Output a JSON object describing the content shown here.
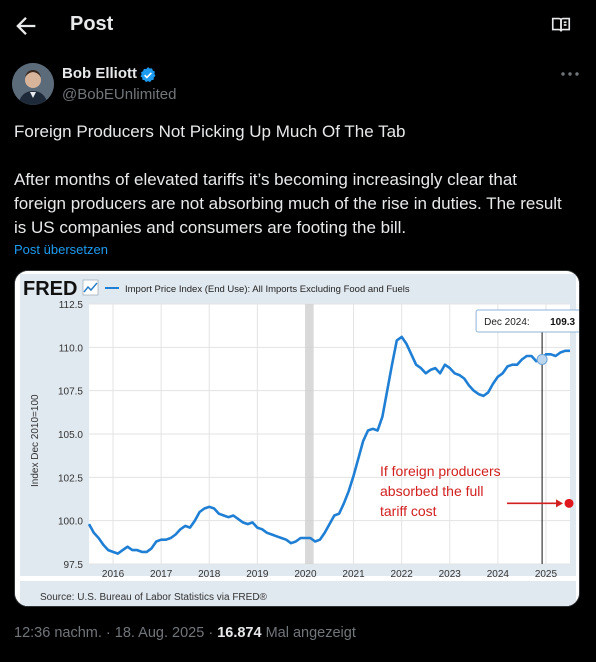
{
  "header": {
    "title": "Post"
  },
  "author": {
    "name": "Bob Elliott",
    "handle": "@BobEUnlimited"
  },
  "post": {
    "headline": "Foreign Producers Not Picking Up Much Of The Tab",
    "body_lines": [
      "After months of elevated tariffs it’s becoming increasingly clear that",
      "foreign producers are not absorbing much of the rise in duties. The result",
      "is US companies and consumers are footing the bill."
    ],
    "translate_label": "Post übersetzen"
  },
  "chart_data": {
    "type": "line",
    "logo": "FRED",
    "series_name": "Import Price Index (End Use): All Imports Excluding Food and Fuels",
    "ylabel": "Index Dec 2010=100",
    "ylim": [
      97.5,
      112.5
    ],
    "yticks": [
      "97.5",
      "100.0",
      "102.5",
      "105.0",
      "107.5",
      "110.0",
      "112.5"
    ],
    "xticks": [
      "2016",
      "2017",
      "2018",
      "2019",
      "2020",
      "2021",
      "2022",
      "2023",
      "2024",
      "2025"
    ],
    "xrange": [
      2015.5,
      2025.5
    ],
    "recession": [
      2020.0,
      2020.17
    ],
    "tooltip": {
      "label": "Dec 2024:",
      "value": "109.3",
      "x": 2024.92
    },
    "annotation": [
      "If foreign producers",
      "absorbed the full",
      "tariff cost"
    ],
    "annotation_point": {
      "x": 2025.48,
      "y": 101.0
    },
    "source": "Source: U.S. Bureau of Labor Statistics via FRED®",
    "x": [
      2015.5,
      2015.6,
      2015.7,
      2015.8,
      2015.9,
      2016.0,
      2016.1,
      2016.2,
      2016.3,
      2016.4,
      2016.5,
      2016.6,
      2016.7,
      2016.8,
      2016.9,
      2017.0,
      2017.1,
      2017.2,
      2017.3,
      2017.4,
      2017.5,
      2017.6,
      2017.7,
      2017.8,
      2017.9,
      2018.0,
      2018.1,
      2018.2,
      2018.3,
      2018.4,
      2018.5,
      2018.6,
      2018.7,
      2018.8,
      2018.9,
      2019.0,
      2019.1,
      2019.2,
      2019.3,
      2019.4,
      2019.5,
      2019.6,
      2019.7,
      2019.8,
      2019.9,
      2020.0,
      2020.1,
      2020.2,
      2020.3,
      2020.4,
      2020.5,
      2020.6,
      2020.7,
      2020.8,
      2020.9,
      2021.0,
      2021.1,
      2021.2,
      2021.3,
      2021.4,
      2021.5,
      2021.6,
      2021.7,
      2021.8,
      2021.9,
      2022.0,
      2022.1,
      2022.2,
      2022.3,
      2022.4,
      2022.5,
      2022.6,
      2022.7,
      2022.8,
      2022.9,
      2023.0,
      2023.1,
      2023.2,
      2023.3,
      2023.4,
      2023.5,
      2023.6,
      2023.7,
      2023.8,
      2023.9,
      2024.0,
      2024.1,
      2024.2,
      2024.3,
      2024.4,
      2024.5,
      2024.6,
      2024.7,
      2024.8,
      2024.9,
      2025.0,
      2025.1,
      2025.2,
      2025.3,
      2025.4,
      2025.5
    ],
    "values": [
      99.8,
      99.3,
      99.0,
      98.6,
      98.3,
      98.2,
      98.1,
      98.3,
      98.5,
      98.3,
      98.3,
      98.2,
      98.2,
      98.4,
      98.8,
      98.9,
      98.9,
      99.0,
      99.2,
      99.5,
      99.7,
      99.6,
      100.0,
      100.5,
      100.7,
      100.8,
      100.7,
      100.4,
      100.3,
      100.2,
      100.3,
      100.1,
      99.9,
      99.8,
      99.9,
      99.6,
      99.5,
      99.3,
      99.2,
      99.1,
      99.0,
      98.9,
      98.7,
      98.8,
      99.0,
      99.0,
      99.0,
      98.8,
      98.9,
      99.3,
      99.8,
      100.3,
      100.4,
      101.0,
      101.7,
      102.6,
      103.6,
      104.6,
      105.2,
      105.3,
      105.2,
      106.0,
      107.5,
      109.0,
      110.4,
      110.6,
      110.2,
      109.6,
      109.0,
      108.8,
      108.5,
      108.7,
      108.8,
      108.5,
      109.0,
      108.8,
      108.5,
      108.4,
      108.2,
      107.8,
      107.5,
      107.3,
      107.2,
      107.4,
      107.9,
      108.3,
      108.5,
      108.9,
      109.0,
      109.0,
      109.3,
      109.5,
      109.5,
      109.2,
      109.3,
      109.6,
      109.6,
      109.5,
      109.7,
      109.8,
      109.8
    ]
  },
  "meta": {
    "time": "12:36 nachm.",
    "date": "18. Aug. 2025",
    "views": "16.874",
    "views_label": "Mal angezeigt",
    "sep": "·"
  }
}
